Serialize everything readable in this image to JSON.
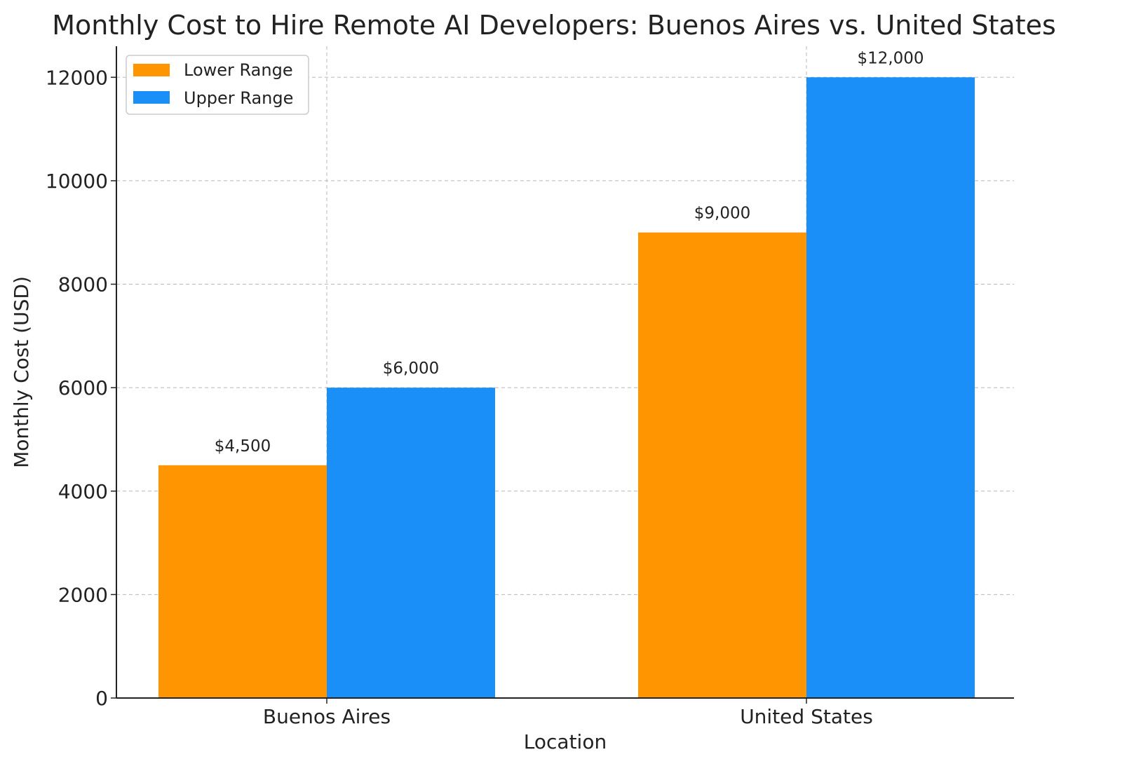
{
  "chart_data": {
    "type": "bar",
    "title": "Monthly Cost to Hire Remote AI Developers: Buenos Aires vs. United States",
    "xlabel": "Location",
    "ylabel": "Monthly Cost (USD)",
    "categories": [
      "Buenos Aires",
      "United States"
    ],
    "series": [
      {
        "name": "Lower Range",
        "values": [
          4500,
          9000
        ],
        "labels": [
          "$4,500",
          "$9,000"
        ],
        "color": "#FF9500"
      },
      {
        "name": "Upper Range",
        "values": [
          6000,
          12000
        ],
        "labels": [
          "$6,000",
          "$12,000"
        ],
        "color": "#1A8FF8"
      }
    ],
    "ylim": [
      0,
      12600
    ],
    "yticks": [
      0,
      2000,
      4000,
      6000,
      8000,
      10000,
      12000
    ],
    "ytick_labels": [
      "0",
      "2000",
      "4000",
      "6000",
      "8000",
      "10000",
      "12000"
    ],
    "grid": true,
    "legend_position": "upper-left"
  }
}
